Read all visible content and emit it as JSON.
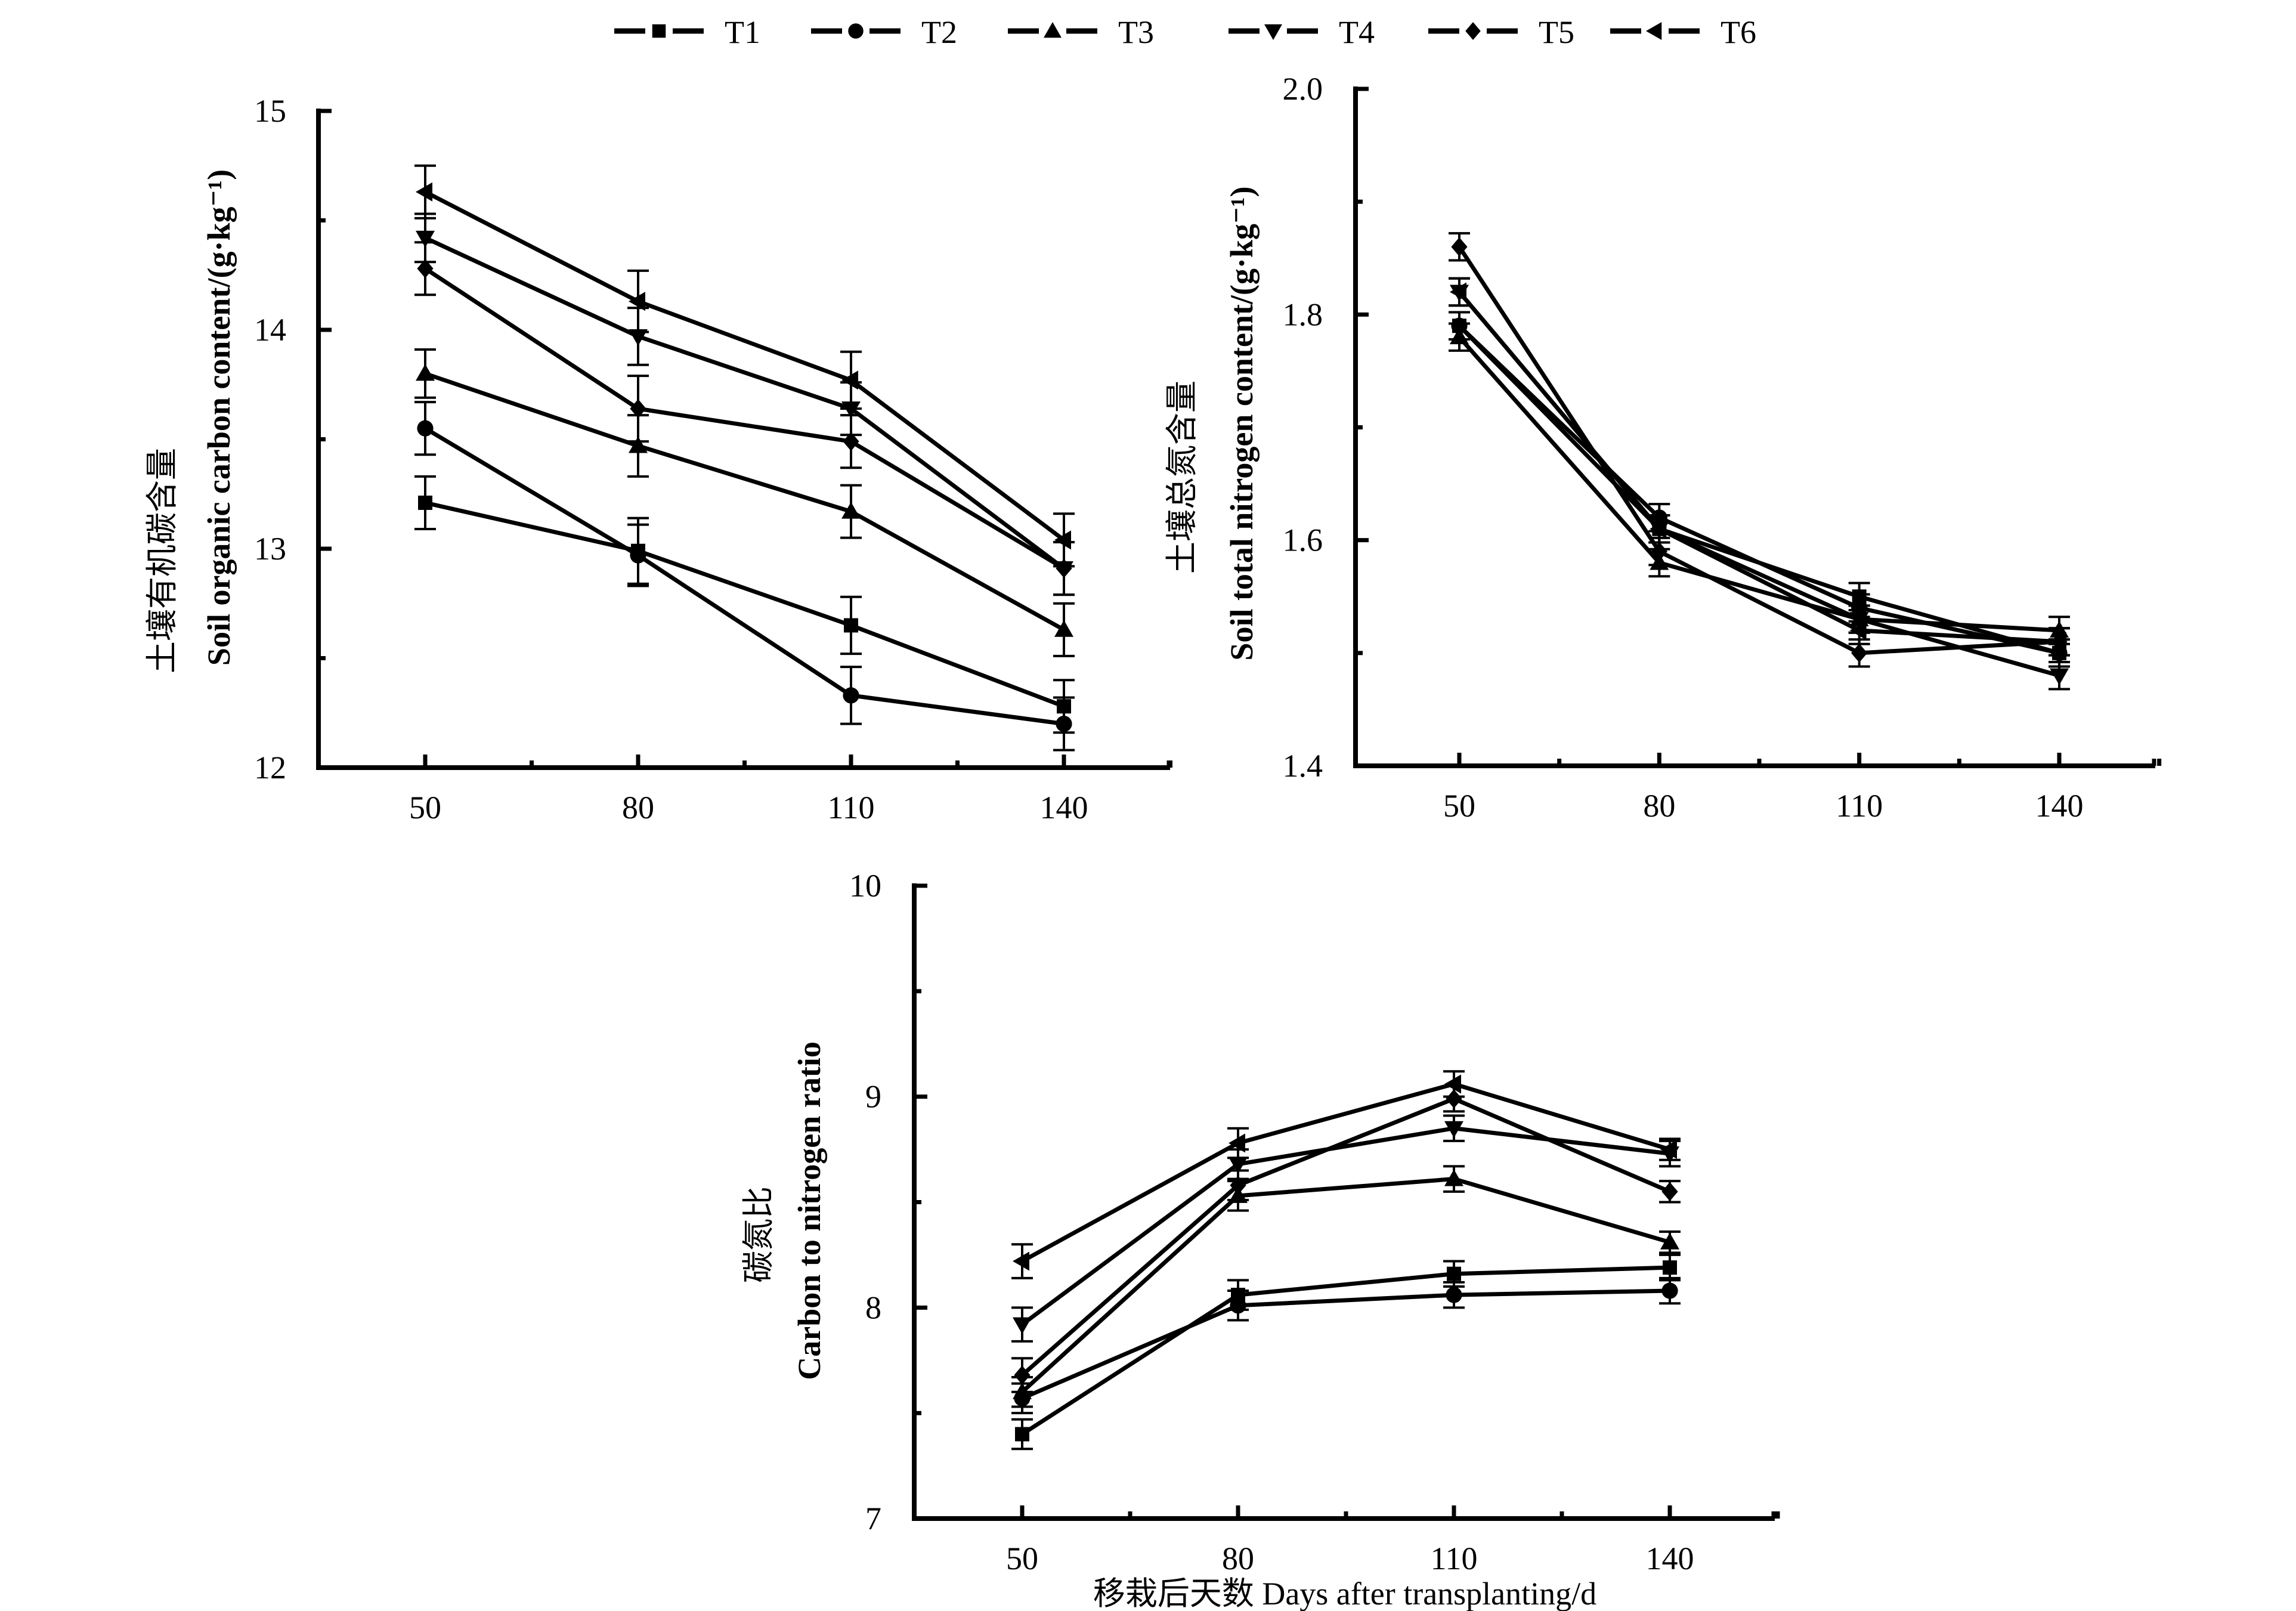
{
  "legend": {
    "entries": [
      {
        "name": "T1",
        "marker": "square"
      },
      {
        "name": "T2",
        "marker": "circle"
      },
      {
        "name": "T3",
        "marker": "triangle-up"
      },
      {
        "name": "T4",
        "marker": "triangle-down"
      },
      {
        "name": "T5",
        "marker": "diamond"
      },
      {
        "name": "T6",
        "marker": "triangle-left"
      }
    ],
    "placement": "top-center"
  },
  "chart_data": [
    {
      "type": "line",
      "title": "",
      "ylabel_cn": "土壤有机碳含量",
      "ylabel_en": "Soil organic carbon content/(g·kg⁻¹)",
      "xlabel": "",
      "x": [
        50,
        80,
        110,
        140
      ],
      "xticks": [
        "50",
        "80",
        "110",
        "140"
      ],
      "xlim": [
        35,
        155
      ],
      "ylim": [
        12,
        15
      ],
      "yticks": [
        "12",
        "13",
        "14",
        "15"
      ],
      "grid": false,
      "series": [
        {
          "name": "T1",
          "values": [
            13.21,
            12.99,
            12.65,
            12.28
          ],
          "errors": [
            0.12,
            0.15,
            0.13,
            0.12
          ]
        },
        {
          "name": "T2",
          "values": [
            13.55,
            12.97,
            12.33,
            12.2
          ],
          "errors": [
            0.12,
            0.14,
            0.13,
            0.12
          ]
        },
        {
          "name": "T3",
          "values": [
            13.8,
            13.47,
            13.17,
            12.63
          ],
          "errors": [
            0.11,
            0.14,
            0.12,
            0.12
          ]
        },
        {
          "name": "T4",
          "values": [
            14.42,
            13.97,
            13.64,
            12.91
          ],
          "errors": [
            0.11,
            0.13,
            0.12,
            0.12
          ]
        },
        {
          "name": "T5",
          "values": [
            14.28,
            13.64,
            13.49,
            12.91
          ],
          "errors": [
            0.12,
            0.15,
            0.12,
            0.12
          ]
        },
        {
          "name": "T6",
          "values": [
            14.63,
            14.13,
            13.77,
            13.04
          ],
          "errors": [
            0.12,
            0.14,
            0.13,
            0.12
          ]
        }
      ]
    },
    {
      "type": "line",
      "title": "",
      "ylabel_cn": "土壤总氮含量",
      "ylabel_en": "Soil total nitrogen content/(g·kg⁻¹)",
      "xlabel": "",
      "x": [
        50,
        80,
        110,
        140
      ],
      "xticks": [
        "50",
        "80",
        "110",
        "140"
      ],
      "xlim": [
        35,
        155
      ],
      "ylim": [
        1.4,
        2.0
      ],
      "yticks": [
        "1.4",
        "1.6",
        "1.8",
        "2.0"
      ],
      "grid": false,
      "series": [
        {
          "name": "T1",
          "values": [
            1.79,
            1.61,
            1.55,
            1.5
          ],
          "errors": [
            0.012,
            0.012,
            0.012,
            0.012
          ]
        },
        {
          "name": "T2",
          "values": [
            1.79,
            1.62,
            1.54,
            1.5
          ],
          "errors": [
            0.012,
            0.012,
            0.012,
            0.012
          ]
        },
        {
          "name": "T3",
          "values": [
            1.78,
            1.58,
            1.53,
            1.52
          ],
          "errors": [
            0.012,
            0.012,
            0.012,
            0.012
          ]
        },
        {
          "name": "T4",
          "values": [
            1.82,
            1.61,
            1.53,
            1.48
          ],
          "errors": [
            0.012,
            0.012,
            0.012,
            0.012
          ]
        },
        {
          "name": "T5",
          "values": [
            1.86,
            1.59,
            1.5,
            1.51
          ],
          "errors": [
            0.012,
            0.012,
            0.012,
            0.012
          ]
        },
        {
          "name": "T6",
          "values": [
            1.82,
            1.61,
            1.52,
            1.51
          ],
          "errors": [
            0.012,
            0.012,
            0.012,
            0.012
          ]
        }
      ]
    },
    {
      "type": "line",
      "title": "",
      "ylabel_cn": "碳氮比",
      "ylabel_en": "Carbon to nitrogen ratio",
      "xlabel": "移栽后天数 Days after transplanting/d",
      "x": [
        50,
        80,
        110,
        140
      ],
      "xticks": [
        "50",
        "80",
        "110",
        "140"
      ],
      "xlim": [
        35,
        155
      ],
      "ylim": [
        7,
        10
      ],
      "yticks": [
        "7",
        "8",
        "9",
        "10"
      ],
      "grid": false,
      "series": [
        {
          "name": "T1",
          "values": [
            7.4,
            8.06,
            8.16,
            8.19
          ],
          "errors": [
            0.07,
            0.07,
            0.06,
            0.06
          ]
        },
        {
          "name": "T2",
          "values": [
            7.57,
            8.01,
            8.06,
            8.08
          ],
          "errors": [
            0.07,
            0.07,
            0.06,
            0.06
          ]
        },
        {
          "name": "T3",
          "values": [
            7.6,
            8.53,
            8.61,
            8.31
          ],
          "errors": [
            0.07,
            0.07,
            0.06,
            0.05
          ]
        },
        {
          "name": "T4",
          "values": [
            7.92,
            8.68,
            8.85,
            8.73
          ],
          "errors": [
            0.08,
            0.07,
            0.06,
            0.06
          ]
        },
        {
          "name": "T5",
          "values": [
            7.68,
            8.58,
            8.99,
            8.55
          ],
          "errors": [
            0.08,
            0.07,
            0.06,
            0.05
          ]
        },
        {
          "name": "T6",
          "values": [
            8.22,
            8.78,
            9.06,
            8.75
          ],
          "errors": [
            0.08,
            0.07,
            0.06,
            0.05
          ]
        }
      ]
    }
  ]
}
